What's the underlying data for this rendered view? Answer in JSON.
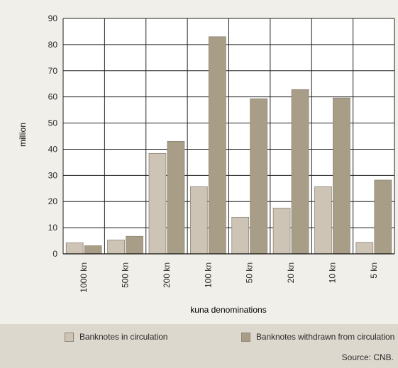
{
  "chart_data": {
    "type": "bar",
    "categories": [
      "1000 kn",
      "500 kn",
      "200 kn",
      "100 kn",
      "50 kn",
      "20 kn",
      "10 kn",
      "5 kn"
    ],
    "series": [
      {
        "name": "Banknotes in circulation",
        "color": "#cdc4b5",
        "values": [
          4.2,
          5.3,
          38.4,
          25.7,
          14.0,
          17.5,
          25.7,
          4.4
        ]
      },
      {
        "name": "Banknotes withdrawn from circulation",
        "color": "#a89d86",
        "values": [
          3.1,
          6.7,
          43.0,
          83.0,
          59.3,
          62.8,
          59.6,
          28.2
        ]
      }
    ],
    "title": "",
    "xlabel": "kuna denominations",
    "ylabel": "million",
    "ylim": [
      0,
      90
    ],
    "yticks": [
      0,
      10,
      20,
      30,
      40,
      50,
      60,
      70,
      80,
      90
    ],
    "grid": true,
    "legend_position": "bottom"
  },
  "source": "Source: CNB."
}
